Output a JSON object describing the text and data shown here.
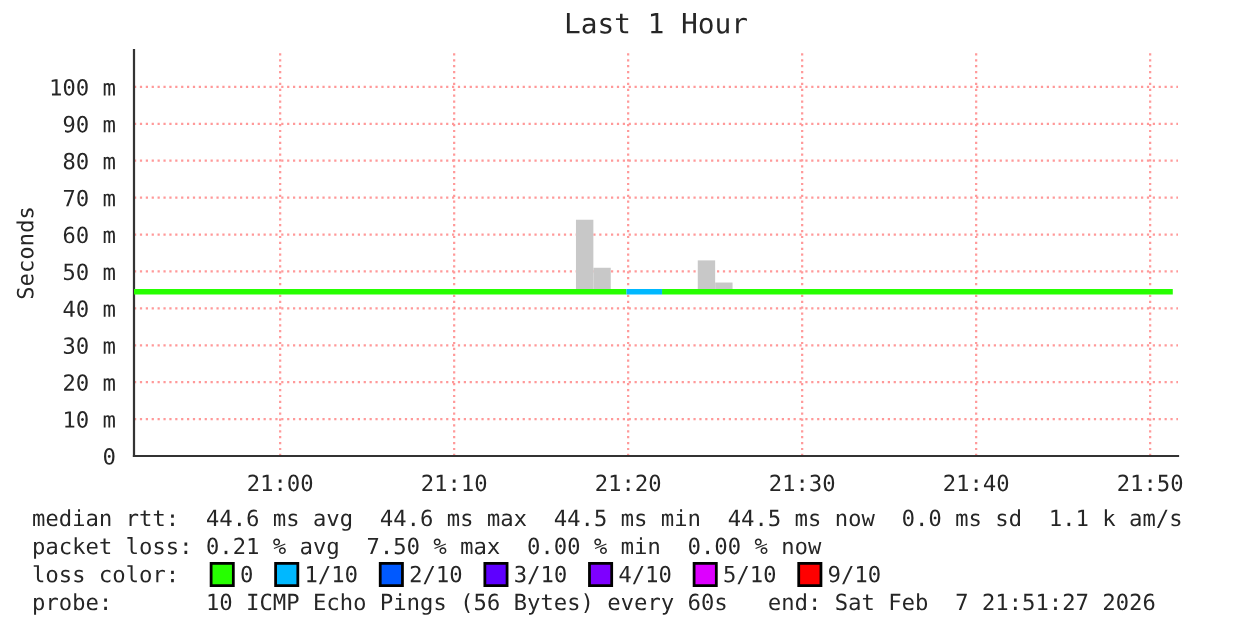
{
  "chart_data": {
    "type": "step",
    "title": "Last 1 Hour",
    "ylabel": "Seconds",
    "xlim": [
      20.86,
      21.86
    ],
    "xticks": [
      {
        "value": 21.0,
        "label": "21:00"
      },
      {
        "value": 21.16667,
        "label": "21:10"
      },
      {
        "value": 21.33333,
        "label": "21:20"
      },
      {
        "value": 21.5,
        "label": "21:30"
      },
      {
        "value": 21.66667,
        "label": "21:40"
      },
      {
        "value": 21.83333,
        "label": "21:50"
      }
    ],
    "ylim": [
      0,
      110
    ],
    "yticks": [
      0,
      {
        "value": 10,
        "label": "10 m"
      },
      {
        "value": 20,
        "label": "20 m"
      },
      {
        "value": 30,
        "label": "30 m"
      },
      {
        "value": 40,
        "label": "40 m"
      },
      {
        "value": 50,
        "label": "50 m"
      },
      {
        "value": 60,
        "label": "60 m"
      },
      {
        "value": 70,
        "label": "70 m"
      },
      {
        "value": 80,
        "label": "80 m"
      },
      {
        "value": 90,
        "label": "90 m"
      },
      {
        "value": 100,
        "label": "100 m"
      }
    ],
    "grid": true,
    "legend": "bottom",
    "legend_title": "loss color:",
    "series": [
      {
        "type": "bar",
        "color": "#c8c8c8",
        "x": [
          21.29167,
          21.30833,
          21.40833,
          21.425
        ],
        "base": [
          44.5,
          44.5,
          44.5,
          44.5
        ],
        "values": [
          19.5,
          6.5,
          8.5,
          2.5
        ]
      },
      {
        "name": "0",
        "color": "#26ff00",
        "x": [
          20.86,
          21.3317,
          21.3658,
          21.855
        ],
        "values": [
          44.5,
          null,
          44.5,
          44.5
        ]
      },
      {
        "name": "1/10",
        "color": "#00b8ff",
        "x": [
          21.3317,
          21.3658
        ],
        "values": [
          44.5,
          44.5
        ]
      },
      {
        "name": "2/10",
        "color": "#0059ff"
      },
      {
        "name": "3/10",
        "color": "#5e00ff"
      },
      {
        "name": "4/10",
        "color": "#7e00ff"
      },
      {
        "name": "5/10",
        "color": "#dd00ff"
      },
      {
        "name": "9/10",
        "color": "#ff0000"
      }
    ],
    "annotations": [
      "median rtt:  44.6 ms avg  44.6 ms max  44.5 ms min  44.5 ms now  0.0 ms sd  1.1 k am/s",
      "packet loss: 0.21 % avg  7.50 % max  0.00 % min  0.00 % now",
      "probe:       10 ICMP Echo Pings (56 Bytes) every 60s   end: Sat Feb  7 21:51:27 2026"
    ]
  }
}
